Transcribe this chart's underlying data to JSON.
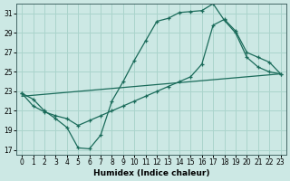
{
  "xlabel": "Humidex (Indice chaleur)",
  "bg_color": "#cce8e4",
  "grid_color": "#aad4cc",
  "line_color": "#1a6b5a",
  "xlim": [
    -0.5,
    23.5
  ],
  "ylim": [
    16.5,
    32.0
  ],
  "xticks": [
    0,
    1,
    2,
    3,
    4,
    5,
    6,
    7,
    8,
    9,
    10,
    11,
    12,
    13,
    14,
    15,
    16,
    17,
    18,
    19,
    20,
    21,
    22,
    23
  ],
  "yticks": [
    17,
    19,
    21,
    23,
    25,
    27,
    29,
    31
  ],
  "line1_x": [
    0,
    1,
    2,
    3,
    4,
    5,
    6,
    7,
    8,
    9,
    10,
    11,
    12,
    13,
    14,
    15,
    16,
    17,
    18,
    19,
    20,
    21,
    22,
    23
  ],
  "line1_y": [
    22.8,
    22.2,
    21.0,
    20.2,
    19.3,
    17.2,
    17.1,
    18.5,
    22.0,
    24.0,
    26.2,
    28.2,
    30.2,
    30.5,
    31.1,
    31.2,
    31.3,
    32.0,
    30.3,
    29.0,
    26.5,
    25.5,
    25.0,
    24.8
  ],
  "line2_x": [
    0,
    23
  ],
  "line2_y": [
    22.5,
    24.8
  ],
  "line3_x": [
    0,
    1,
    2,
    3,
    4,
    5,
    6,
    7,
    8,
    9,
    10,
    11,
    12,
    13,
    14,
    15,
    16,
    17,
    18,
    19,
    20,
    21,
    22,
    23
  ],
  "line3_y": [
    22.8,
    21.5,
    20.9,
    20.5,
    20.2,
    19.5,
    20.0,
    20.5,
    21.0,
    21.5,
    22.0,
    22.5,
    23.0,
    23.5,
    24.0,
    24.5,
    25.8,
    29.8,
    30.4,
    29.2,
    27.0,
    26.5,
    26.0,
    24.8
  ]
}
